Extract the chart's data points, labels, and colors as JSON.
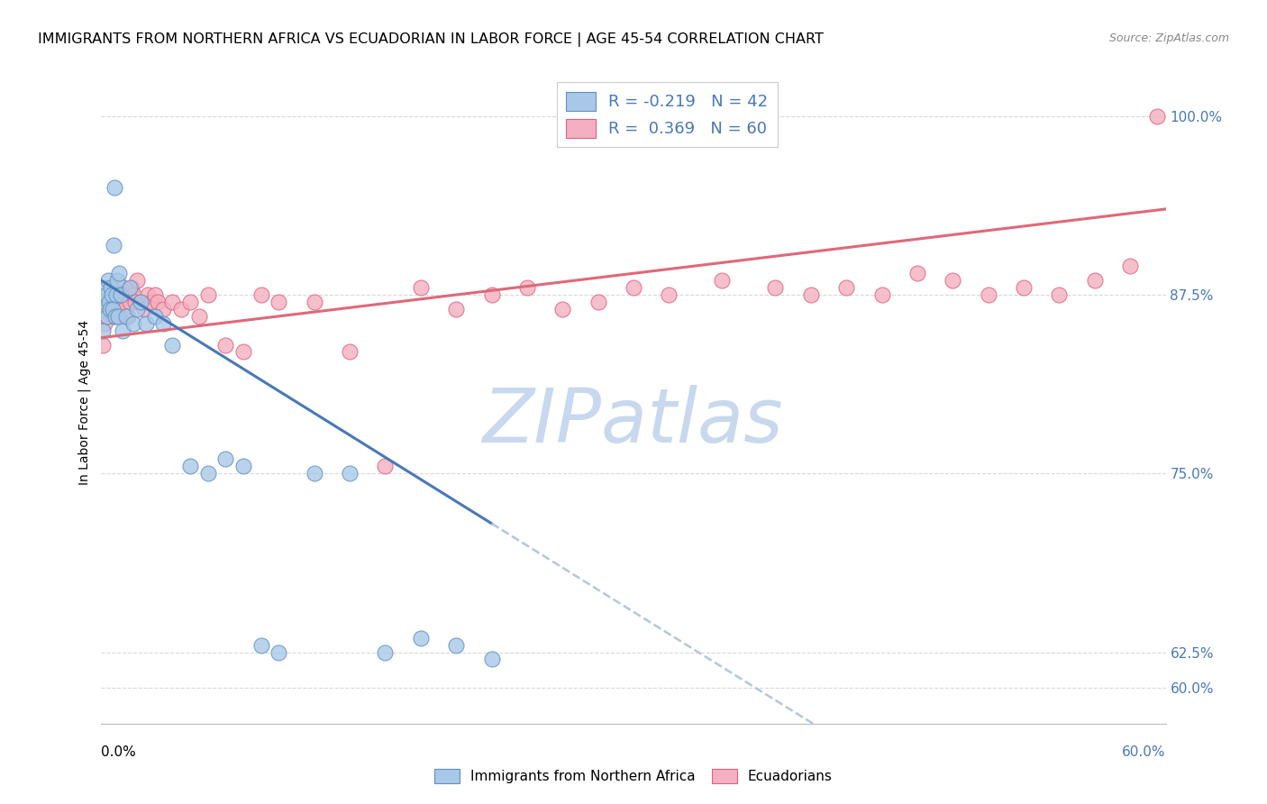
{
  "title": "IMMIGRANTS FROM NORTHERN AFRICA VS ECUADORIAN IN LABOR FORCE | AGE 45-54 CORRELATION CHART",
  "source": "Source: ZipAtlas.com",
  "ylabel": "In Labor Force | Age 45-54",
  "right_yticks": [
    60.0,
    62.5,
    75.0,
    87.5,
    100.0
  ],
  "right_yticklabels": [
    "60.0%",
    "62.5%",
    "75.0%",
    "87.5%",
    "100.0%"
  ],
  "blue_R": -0.219,
  "blue_N": 42,
  "pink_R": 0.369,
  "pink_N": 60,
  "blue_color": "#a8c8e8",
  "pink_color": "#f4b0c0",
  "blue_edge_color": "#6090c0",
  "pink_edge_color": "#e06080",
  "blue_line_color": "#4878b8",
  "pink_line_color": "#e06878",
  "blue_dash_color": "#b0c8e0",
  "legend_label_blue": "Immigrants from Northern Africa",
  "legend_label_pink": "Ecuadorians",
  "blue_scatter_x": [
    0.1,
    0.15,
    0.2,
    0.25,
    0.3,
    0.35,
    0.4,
    0.45,
    0.5,
    0.55,
    0.6,
    0.65,
    0.7,
    0.75,
    0.8,
    0.85,
    0.9,
    0.95,
    1.0,
    1.1,
    1.2,
    1.4,
    1.6,
    1.8,
    2.0,
    2.2,
    2.5,
    3.0,
    3.5,
    4.0,
    5.0,
    6.0,
    7.0,
    8.0,
    9.0,
    10.0,
    12.0,
    14.0,
    16.0,
    18.0,
    20.0,
    22.0
  ],
  "blue_scatter_y": [
    85.0,
    86.5,
    87.0,
    88.0,
    87.5,
    86.0,
    88.5,
    87.0,
    86.5,
    88.0,
    87.5,
    86.5,
    91.0,
    95.0,
    86.0,
    87.5,
    88.5,
    86.0,
    89.0,
    87.5,
    85.0,
    86.0,
    88.0,
    85.5,
    86.5,
    87.0,
    85.5,
    86.0,
    85.5,
    84.0,
    75.5,
    75.0,
    76.0,
    75.5,
    63.0,
    62.5,
    75.0,
    75.0,
    62.5,
    63.5,
    63.0,
    62.0
  ],
  "pink_scatter_x": [
    0.1,
    0.2,
    0.3,
    0.4,
    0.5,
    0.6,
    0.7,
    0.8,
    0.9,
    1.0,
    1.1,
    1.2,
    1.3,
    1.4,
    1.5,
    1.6,
    1.7,
    1.8,
    1.9,
    2.0,
    2.2,
    2.4,
    2.6,
    2.8,
    3.0,
    3.2,
    3.5,
    4.0,
    4.5,
    5.0,
    5.5,
    6.0,
    7.0,
    8.0,
    9.0,
    10.0,
    12.0,
    14.0,
    16.0,
    18.0,
    20.0,
    22.0,
    24.0,
    26.0,
    28.0,
    30.0,
    32.0,
    35.0,
    38.0,
    40.0,
    42.0,
    44.0,
    46.0,
    48.0,
    50.0,
    52.0,
    54.0,
    56.0,
    58.0,
    59.5
  ],
  "pink_scatter_y": [
    84.0,
    85.5,
    86.0,
    87.0,
    86.5,
    87.5,
    86.0,
    87.5,
    86.5,
    87.0,
    87.5,
    88.0,
    86.5,
    87.5,
    86.0,
    87.0,
    88.0,
    87.5,
    87.0,
    88.5,
    87.0,
    86.5,
    87.5,
    87.0,
    87.5,
    87.0,
    86.5,
    87.0,
    86.5,
    87.0,
    86.0,
    87.5,
    84.0,
    83.5,
    87.5,
    87.0,
    87.0,
    83.5,
    75.5,
    88.0,
    86.5,
    87.5,
    88.0,
    86.5,
    87.0,
    88.0,
    87.5,
    88.5,
    88.0,
    87.5,
    88.0,
    87.5,
    89.0,
    88.5,
    87.5,
    88.0,
    87.5,
    88.5,
    89.5,
    100.0
  ],
  "xmin": 0.0,
  "xmax": 60.0,
  "ymin": 57.5,
  "ymax": 102.5,
  "blue_line_x0": 0.0,
  "blue_line_y0": 88.5,
  "blue_line_x1": 22.0,
  "blue_line_y1": 71.5,
  "blue_solid_end": 22.0,
  "blue_dash_end": 60.0,
  "pink_line_x0": 0.0,
  "pink_line_y0": 84.5,
  "pink_line_x1": 60.0,
  "pink_line_y1": 93.5,
  "grid_color": "#d8d8d8",
  "grid_style": "--",
  "background_color": "#ffffff",
  "title_fontsize": 11.5,
  "source_fontsize": 9,
  "ylabel_fontsize": 10,
  "legend_fontsize": 13,
  "tick_label_fontsize": 11,
  "watermark_zip": "ZIP",
  "watermark_atlas": "atlas",
  "watermark_color": "#c8d8ee",
  "watermark_fontsize": 60
}
